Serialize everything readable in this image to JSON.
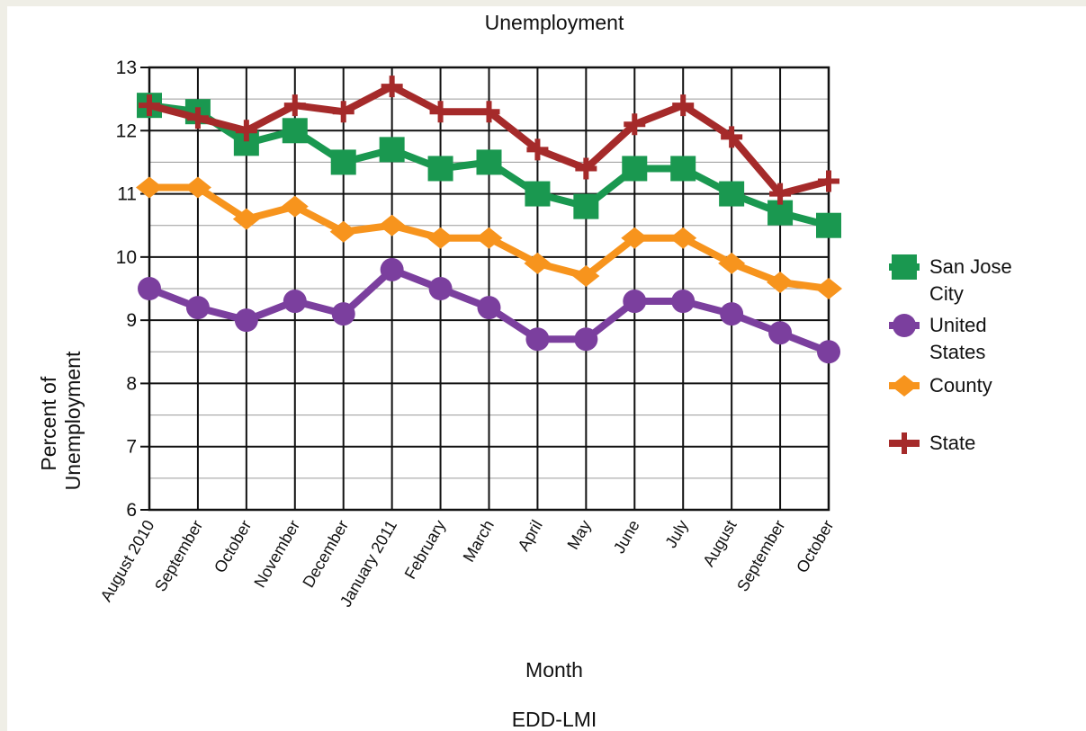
{
  "chart_data": {
    "type": "line",
    "title": "Unemployment",
    "xlabel": "Month",
    "ylabel_lines": [
      "Percent of",
      "Unemployment"
    ],
    "footer": "EDD-LMI",
    "categories": [
      "August 2010",
      "September",
      "October",
      "November",
      "December",
      "January 2011",
      "February",
      "March",
      "April",
      "May",
      "June",
      "July",
      "August",
      "September",
      "October"
    ],
    "ylim": [
      6,
      13
    ],
    "yticks": [
      6,
      7,
      8,
      9,
      10,
      11,
      12,
      13
    ],
    "grid": true,
    "legend_position": "right",
    "series": [
      {
        "name": "San Jose City",
        "label_lines": [
          "San Jose",
          "City"
        ],
        "marker": "square",
        "color": "#1a9850",
        "values": [
          12.4,
          12.3,
          11.8,
          12.0,
          11.5,
          11.7,
          11.4,
          11.5,
          11.0,
          10.8,
          11.4,
          11.4,
          11.0,
          10.7,
          10.5
        ]
      },
      {
        "name": "United States",
        "label_lines": [
          "United",
          "States"
        ],
        "marker": "circle",
        "color": "#7b3f9e",
        "values": [
          9.5,
          9.2,
          9.0,
          9.3,
          9.1,
          9.8,
          9.5,
          9.2,
          8.7,
          8.7,
          9.3,
          9.3,
          9.1,
          8.8,
          8.5
        ]
      },
      {
        "name": "County",
        "label_lines": [
          "County"
        ],
        "marker": "diamond",
        "color": "#f7941d",
        "values": [
          11.1,
          11.1,
          10.6,
          10.8,
          10.4,
          10.5,
          10.3,
          10.3,
          9.9,
          9.7,
          10.3,
          10.3,
          9.9,
          9.6,
          9.5
        ]
      },
      {
        "name": "State",
        "label_lines": [
          "State"
        ],
        "marker": "plus",
        "color": "#a52a2a",
        "values": [
          12.4,
          12.2,
          12.0,
          12.4,
          12.3,
          12.7,
          12.3,
          12.3,
          11.7,
          11.4,
          12.1,
          12.4,
          11.9,
          11.0,
          11.2
        ]
      }
    ]
  }
}
